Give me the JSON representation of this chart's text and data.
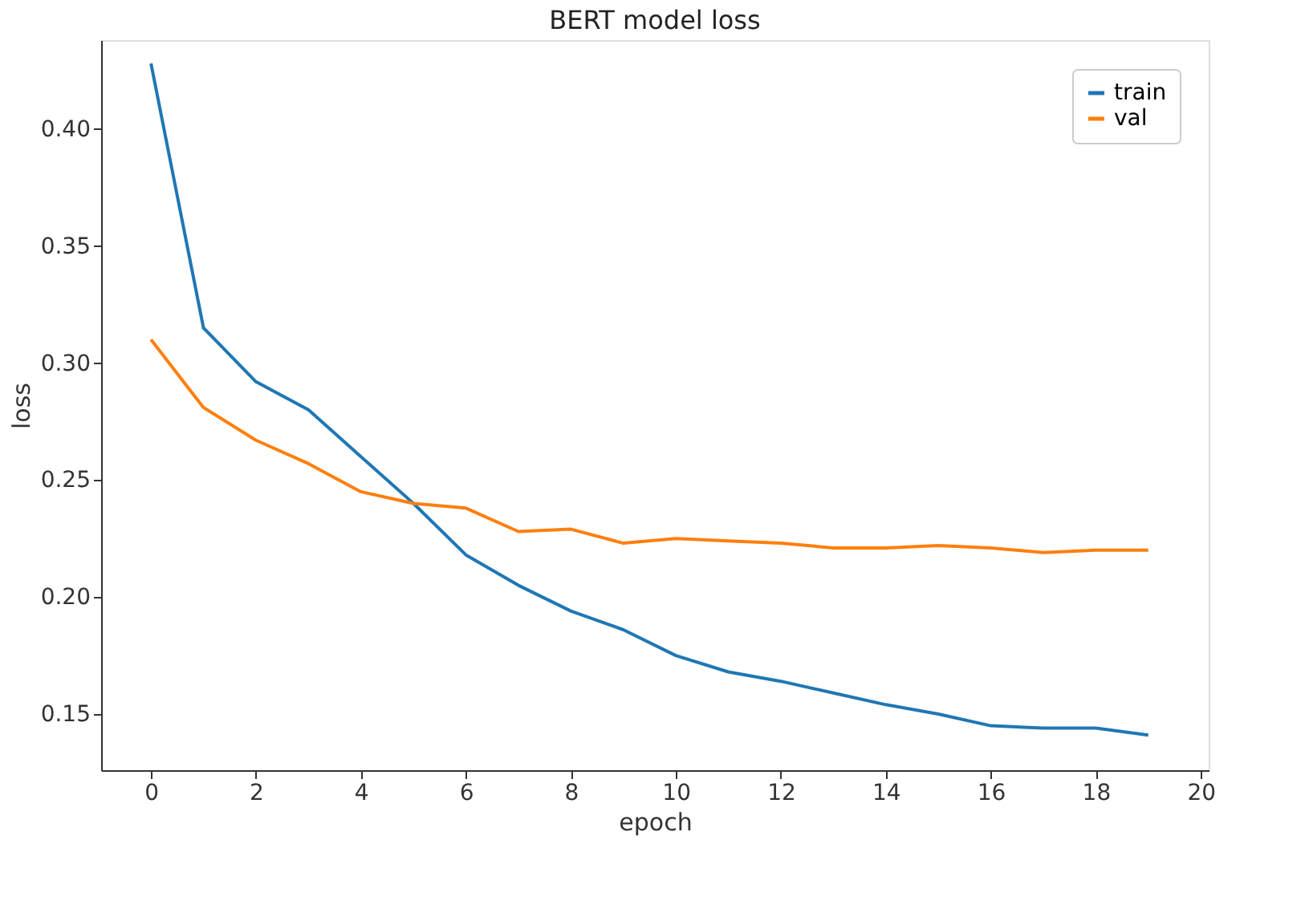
{
  "chart_data": {
    "type": "line",
    "title": "BERT model loss",
    "xlabel": "epoch",
    "ylabel": "loss",
    "x": [
      0,
      1,
      2,
      3,
      4,
      5,
      6,
      7,
      8,
      9,
      10,
      11,
      12,
      13,
      14,
      15,
      16,
      17,
      18,
      19
    ],
    "series": [
      {
        "name": "train",
        "color": "#1f77b4",
        "values": [
          0.428,
          0.315,
          0.292,
          0.28,
          0.26,
          0.24,
          0.218,
          0.205,
          0.194,
          0.186,
          0.175,
          0.168,
          0.164,
          0.159,
          0.154,
          0.15,
          0.145,
          0.144,
          0.144,
          0.141
        ]
      },
      {
        "name": "val",
        "color": "#ff7f0e",
        "values": [
          0.31,
          0.281,
          0.267,
          0.257,
          0.245,
          0.24,
          0.238,
          0.228,
          0.229,
          0.223,
          0.225,
          0.224,
          0.223,
          0.221,
          0.221,
          0.222,
          0.221,
          0.219,
          0.22,
          0.22
        ]
      }
    ],
    "xlim": [
      -0.95,
      20.15
    ],
    "ylim": [
      0.126,
      0.438
    ],
    "xticks": [
      0,
      2,
      4,
      6,
      8,
      10,
      12,
      14,
      16,
      18,
      20
    ],
    "yticks": [
      {
        "value": 0.15,
        "label": "0.15"
      },
      {
        "value": 0.2,
        "label": "0.20"
      },
      {
        "value": 0.25,
        "label": "0.25"
      },
      {
        "value": 0.3,
        "label": "0.30"
      },
      {
        "value": 0.35,
        "label": "0.35"
      },
      {
        "value": 0.4,
        "label": "0.40"
      }
    ],
    "grid": false,
    "legend": "top right",
    "line_style": "solid",
    "marker": "none"
  }
}
